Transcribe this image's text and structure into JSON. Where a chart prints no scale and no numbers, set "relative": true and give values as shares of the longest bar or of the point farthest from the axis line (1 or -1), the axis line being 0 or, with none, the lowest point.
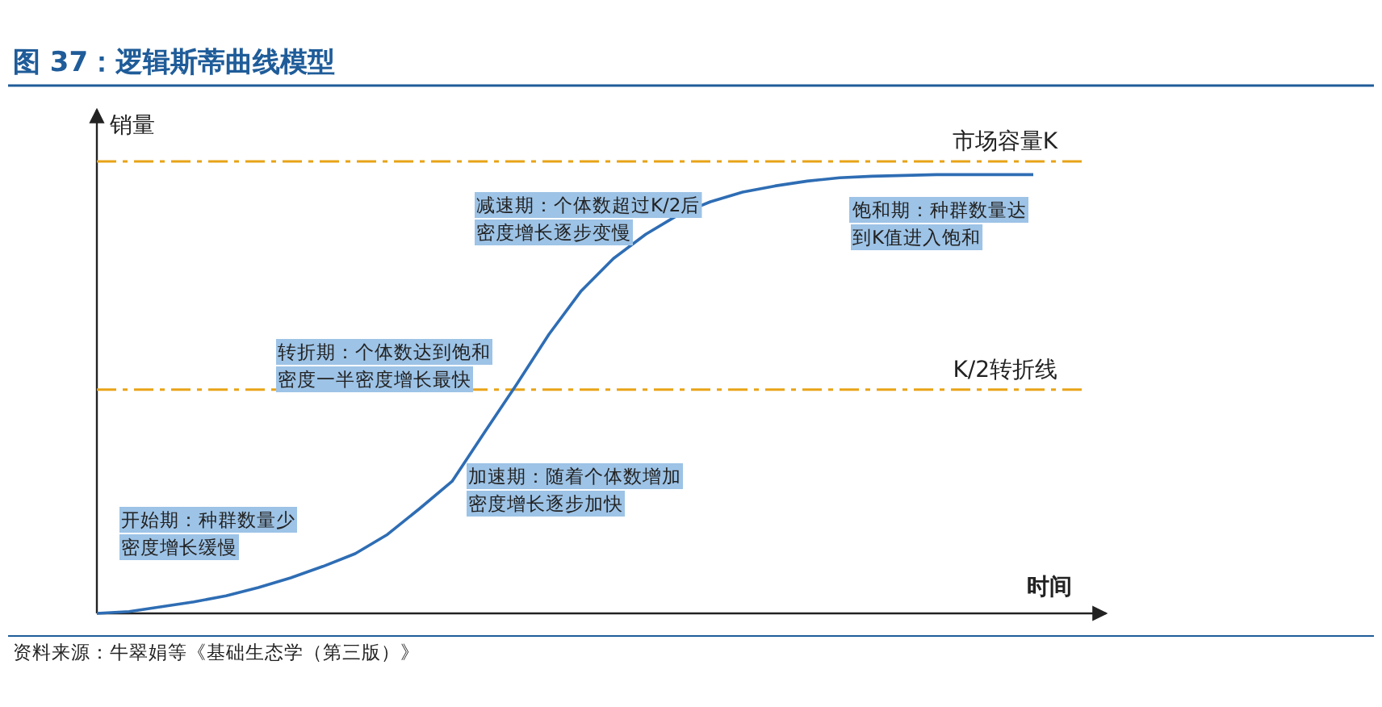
{
  "chart_data": {
    "type": "line",
    "title": "图 37：逻辑斯蒂曲线模型",
    "xlabel": "时间",
    "ylabel": "销量",
    "relative": true,
    "line_style": "solid",
    "categories": [
      null,
      null,
      null,
      null,
      null,
      null,
      null,
      null,
      null,
      null,
      null,
      null,
      null,
      null,
      null,
      null,
      null,
      null,
      null,
      null,
      null,
      null,
      null,
      null,
      null,
      null,
      null,
      null,
      null,
      null
    ],
    "series": [
      {
        "color": "#2e6db4",
        "values": [
          0,
          0.004,
          0.015,
          0.026,
          0.04,
          0.059,
          0.081,
          0.107,
          0.136,
          0.18,
          0.239,
          0.301,
          0.412,
          0.522,
          0.636,
          0.735,
          0.809,
          0.864,
          0.908,
          0.938,
          0.96,
          0.974,
          0.985,
          0.993,
          0.996,
          0.998,
          1,
          1,
          1,
          1
        ]
      }
    ],
    "ref_lines": [
      {
        "axis": "y",
        "value": 1.03,
        "label": "市场容量K",
        "color": "#e8a317",
        "line_style": "dashed"
      },
      {
        "axis": "y",
        "value": 0.51,
        "label": "K/2转折线",
        "color": "#e8a317",
        "line_style": "dashed"
      }
    ],
    "annotations": [
      "开始期：种群数量少密度增长缓慢",
      "转折期：个体数达到饱和密度一半密度增长最快",
      "加速期：随着个体数增加密度增长逐步加快",
      "减速期：个体数超过K/2后密度增长逐步变慢",
      "饱和期：种群数量达到K值进入饱和",
      "资料来源：牛翠娟等《基础生态学（第三版）》"
    ]
  }
}
